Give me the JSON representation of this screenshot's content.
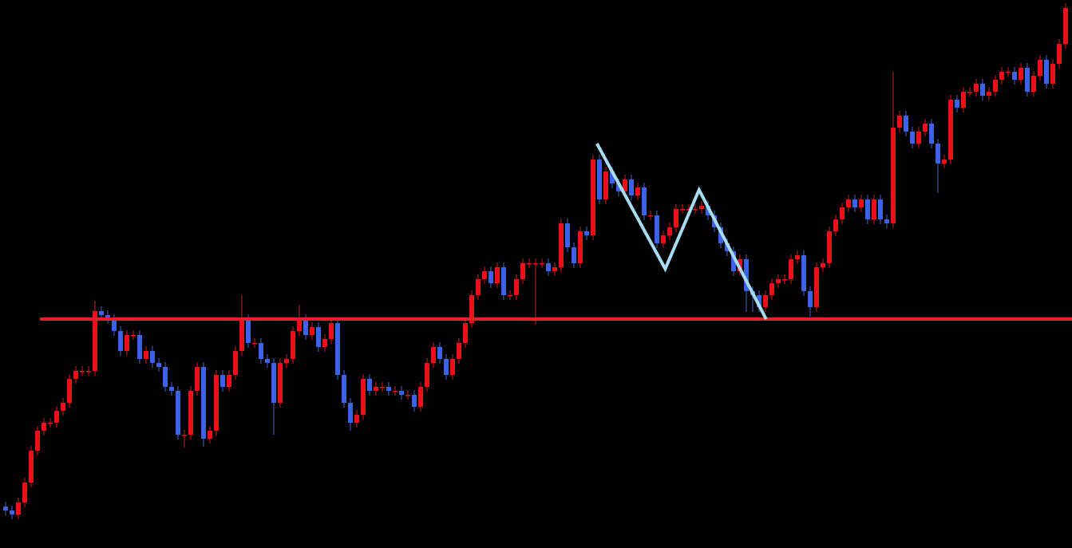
{
  "chart_data": {
    "type": "candlestick",
    "ylim": [
      0,
      687
    ],
    "up_color": "#e8101a",
    "down_color": "#3f63e0",
    "background": "#000000",
    "open": [
      52,
      47,
      42,
      57,
      82,
      122,
      147,
      157,
      157,
      172,
      182,
      212,
      222,
      222,
      222,
      297,
      292,
      287,
      272,
      247,
      267,
      267,
      237,
      247,
      232,
      227,
      202,
      197,
      142,
      142,
      197,
      227,
      137,
      147,
      217,
      202,
      217,
      247,
      287,
      257,
      257,
      237,
      232,
      182,
      232,
      237,
      272,
      287,
      267,
      277,
      252,
      262,
      282,
      217,
      182,
      157,
      167,
      212,
      197,
      202,
      202,
      197,
      197,
      192,
      192,
      177,
      202,
      232,
      252,
      237,
      217,
      237,
      257,
      282,
      317,
      337,
      347,
      332,
      352,
      317,
      317,
      337,
      357,
      357,
      357,
      357,
      347,
      352,
      407,
      377,
      357,
      397,
      392,
      487,
      437,
      472,
      457,
      447,
      462,
      442,
      452,
      417,
      417,
      382,
      392,
      402,
      425,
      425,
      425,
      425,
      429,
      417,
      402,
      382,
      372,
      347,
      362,
      322,
      317,
      302,
      317,
      332,
      337,
      337,
      362,
      367,
      322,
      302,
      352,
      357,
      397,
      412,
      427,
      437,
      427,
      437,
      412,
      437,
      412,
      407,
      527,
      542,
      522,
      507,
      522,
      532,
      507,
      482,
      487,
      562,
      552,
      572,
      572,
      582,
      567,
      572,
      587,
      597,
      597,
      587,
      602,
      572,
      592,
      612,
      582,
      607,
      632
    ],
    "close": [
      47,
      42,
      57,
      82,
      122,
      147,
      157,
      157,
      172,
      182,
      212,
      222,
      222,
      222,
      297,
      292,
      287,
      272,
      247,
      267,
      267,
      237,
      247,
      232,
      227,
      202,
      197,
      142,
      142,
      197,
      227,
      137,
      147,
      217,
      202,
      217,
      247,
      287,
      257,
      257,
      237,
      232,
      182,
      232,
      237,
      272,
      287,
      267,
      277,
      252,
      262,
      282,
      217,
      182,
      157,
      167,
      212,
      197,
      202,
      202,
      197,
      197,
      192,
      192,
      177,
      202,
      232,
      252,
      237,
      217,
      237,
      257,
      282,
      317,
      337,
      347,
      332,
      352,
      317,
      317,
      337,
      357,
      357,
      357,
      357,
      347,
      352,
      407,
      377,
      357,
      397,
      392,
      487,
      437,
      472,
      457,
      447,
      462,
      442,
      452,
      417,
      417,
      382,
      392,
      402,
      425,
      425,
      425,
      425,
      429,
      417,
      402,
      382,
      372,
      347,
      362,
      322,
      317,
      302,
      317,
      332,
      337,
      337,
      362,
      367,
      322,
      302,
      352,
      357,
      397,
      412,
      427,
      437,
      427,
      437,
      412,
      437,
      412,
      407,
      527,
      542,
      522,
      507,
      522,
      532,
      507,
      482,
      487,
      562,
      552,
      572,
      572,
      582,
      567,
      572,
      587,
      597,
      597,
      587,
      602,
      572,
      592,
      612,
      582,
      607,
      632,
      677
    ],
    "high": [
      58,
      53,
      63,
      88,
      128,
      153,
      163,
      163,
      178,
      188,
      218,
      228,
      228,
      228,
      310,
      303,
      298,
      293,
      278,
      273,
      273,
      273,
      253,
      253,
      238,
      233,
      208,
      203,
      148,
      203,
      233,
      233,
      153,
      223,
      223,
      223,
      253,
      317,
      293,
      263,
      263,
      243,
      238,
      238,
      243,
      278,
      305,
      293,
      283,
      283,
      268,
      288,
      288,
      223,
      188,
      173,
      218,
      218,
      208,
      208,
      208,
      203,
      203,
      198,
      198,
      208,
      238,
      258,
      258,
      243,
      243,
      263,
      288,
      323,
      343,
      353,
      353,
      358,
      358,
      323,
      343,
      363,
      363,
      363,
      363,
      363,
      358,
      413,
      413,
      383,
      403,
      403,
      493,
      493,
      478,
      478,
      463,
      468,
      468,
      458,
      458,
      423,
      423,
      398,
      408,
      431,
      431,
      431,
      431,
      435,
      435,
      423,
      408,
      388,
      378,
      368,
      368,
      328,
      323,
      323,
      338,
      343,
      343,
      368,
      373,
      373,
      328,
      358,
      363,
      403,
      418,
      433,
      443,
      443,
      443,
      443,
      443,
      443,
      418,
      597,
      548,
      548,
      528,
      528,
      538,
      538,
      513,
      493,
      568,
      568,
      578,
      578,
      588,
      588,
      578,
      593,
      603,
      603,
      603,
      608,
      608,
      598,
      618,
      618,
      613,
      638,
      683
    ],
    "low": [
      41,
      36,
      36,
      51,
      76,
      116,
      141,
      151,
      151,
      166,
      176,
      206,
      216,
      216,
      216,
      286,
      281,
      266,
      241,
      241,
      261,
      231,
      231,
      226,
      221,
      196,
      191,
      136,
      126,
      136,
      191,
      127,
      131,
      141,
      196,
      196,
      211,
      241,
      251,
      251,
      231,
      226,
      142,
      176,
      226,
      231,
      266,
      261,
      261,
      246,
      246,
      256,
      211,
      176,
      147,
      151,
      161,
      191,
      191,
      196,
      191,
      191,
      186,
      186,
      171,
      171,
      196,
      226,
      231,
      211,
      211,
      231,
      251,
      276,
      311,
      331,
      326,
      326,
      311,
      311,
      311,
      331,
      351,
      280,
      351,
      341,
      341,
      346,
      371,
      351,
      351,
      386,
      386,
      431,
      431,
      451,
      441,
      441,
      436,
      436,
      411,
      411,
      376,
      376,
      386,
      396,
      419,
      419,
      419,
      419,
      411,
      396,
      376,
      366,
      341,
      341,
      296,
      296,
      296,
      296,
      311,
      326,
      331,
      331,
      356,
      316,
      290,
      296,
      346,
      351,
      391,
      406,
      421,
      421,
      421,
      406,
      406,
      406,
      401,
      401,
      521,
      516,
      501,
      501,
      516,
      501,
      445,
      476,
      481,
      546,
      546,
      566,
      566,
      561,
      561,
      566,
      581,
      591,
      581,
      581,
      566,
      566,
      586,
      576,
      576,
      601,
      626
    ],
    "level": {
      "value": 287,
      "color": "#e8202a"
    },
    "pattern": {
      "color": "#a8dcf0",
      "x": [
        92.6,
        103.3,
        108.6,
        119.1
      ],
      "values": [
        507,
        350,
        449,
        287
      ]
    }
  }
}
